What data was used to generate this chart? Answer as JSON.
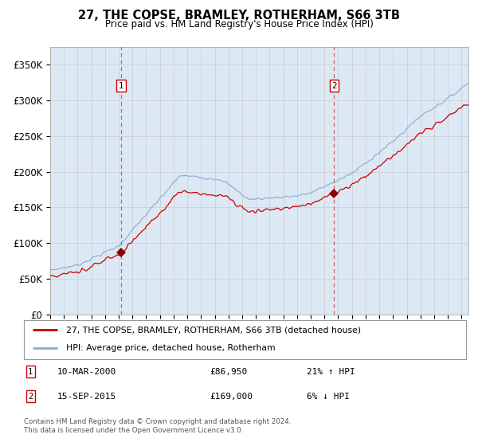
{
  "title": "27, THE COPSE, BRAMLEY, ROTHERHAM, S66 3TB",
  "subtitle": "Price paid vs. HM Land Registry's House Price Index (HPI)",
  "bg_color": "#dce9f5",
  "red_line_color": "#cc0000",
  "blue_line_color": "#88aacc",
  "marker_color": "#880000",
  "vline_color": "#cc4444",
  "sale1_date": 2000.19,
  "sale1_price": 86950,
  "sale1_text": "10-MAR-2000",
  "sale1_amount": "£86,950",
  "sale1_hpi": "21% ↑ HPI",
  "sale2_date": 2015.71,
  "sale2_price": 169000,
  "sale2_text": "15-SEP-2015",
  "sale2_amount": "£169,000",
  "sale2_hpi": "6% ↓ HPI",
  "xmin": 1995.0,
  "xmax": 2025.5,
  "ymin": 0,
  "ymax": 375000,
  "yticks": [
    0,
    50000,
    100000,
    150000,
    200000,
    250000,
    300000,
    350000
  ],
  "ytick_labels": [
    "£0",
    "£50K",
    "£100K",
    "£150K",
    "£200K",
    "£250K",
    "£300K",
    "£350K"
  ],
  "legend_line1": "27, THE COPSE, BRAMLEY, ROTHERHAM, S66 3TB (detached house)",
  "legend_line2": "HPI: Average price, detached house, Rotherham",
  "footer1": "Contains HM Land Registry data © Crown copyright and database right 2024.",
  "footer2": "This data is licensed under the Open Government Licence v3.0."
}
